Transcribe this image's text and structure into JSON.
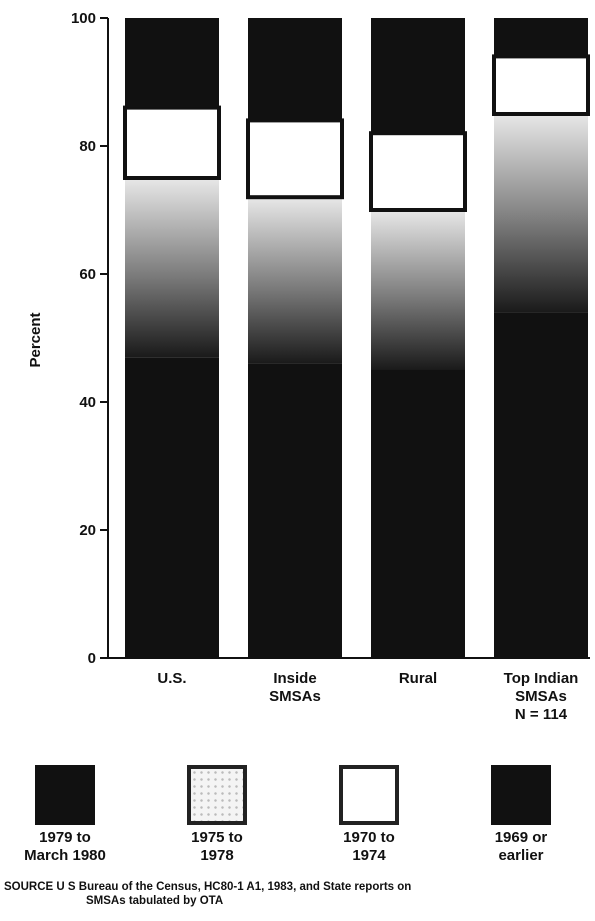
{
  "chart_data": {
    "type": "bar",
    "stacked": true,
    "title": "",
    "xlabel": "",
    "ylabel": "Percent",
    "ylim": [
      0,
      100
    ],
    "yticks": [
      "0",
      "20",
      "40",
      "60",
      "80",
      "100"
    ],
    "grid": false,
    "legend_position": "bottom",
    "categories": [
      "U.S.",
      "Inside\nSMSAs",
      "Rural",
      "Top Indian\nSMSAs\nN = 114"
    ],
    "series": [
      {
        "name": "1969 or\nearlier",
        "values": [
          47,
          46,
          45,
          54
        ],
        "color": "#111111"
      },
      {
        "name": "1970 to\n1974",
        "values": [
          28,
          26,
          25,
          31
        ],
        "color": "#6f6f6f"
      },
      {
        "name": "1975 to\n1978",
        "values": [
          11,
          12,
          12,
          9
        ],
        "color": "#ffffff"
      },
      {
        "name": "1979 to\nMarch 1980",
        "values": [
          14,
          16,
          18,
          6
        ],
        "color": "#111111"
      }
    ]
  },
  "legend": [
    {
      "label": "1979 to\nMarch 1980",
      "pattern": "solid-dark"
    },
    {
      "label": "1975 to\n1978",
      "pattern": "light-speckle"
    },
    {
      "label": "1970 to\n1974",
      "pattern": "white"
    },
    {
      "label": "1969 or\nearlier",
      "pattern": "dark"
    }
  ],
  "source": {
    "line1": "SOURCE U S Bureau of the Census, HC80-1 A1, 1983, and State reports on",
    "line2": "SMSAs tabulated by OTA"
  }
}
